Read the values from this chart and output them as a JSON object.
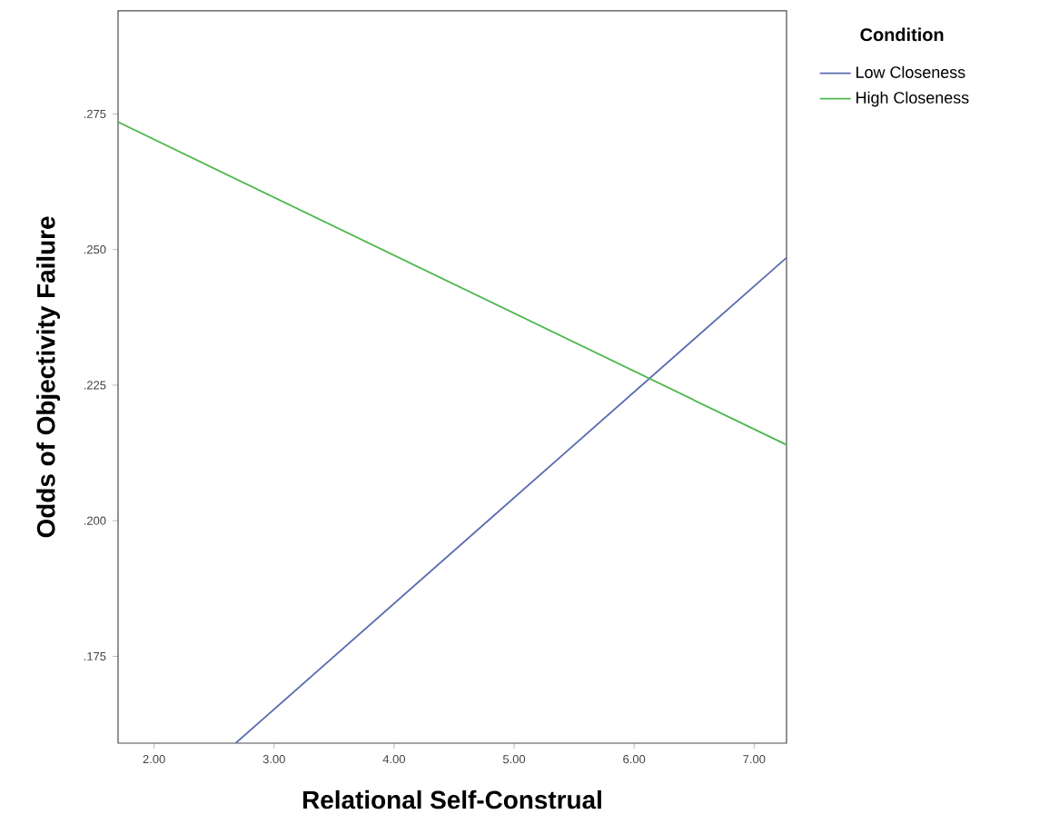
{
  "chart_data": {
    "type": "line",
    "xlabel": "Relational Self-Construal",
    "ylabel": "Odds of Objectivity Failure",
    "legend_title": "Condition",
    "legend": "top right",
    "grid": false,
    "marker": "none",
    "line_style": "solid",
    "xlim": [
      1.7,
      7.27
    ],
    "ylim": [
      0.159,
      0.294
    ],
    "xticks": [
      {
        "value": 2,
        "label": "2.00"
      },
      {
        "value": 3,
        "label": "3.00"
      },
      {
        "value": 4,
        "label": "4.00"
      },
      {
        "value": 5,
        "label": "5.00"
      },
      {
        "value": 6,
        "label": "6.00"
      },
      {
        "value": 7,
        "label": "7.00"
      }
    ],
    "yticks": [
      {
        "value": 0.175,
        "label": ".175"
      },
      {
        "value": 0.2,
        "label": ".200"
      },
      {
        "value": 0.225,
        "label": ".225"
      },
      {
        "value": 0.25,
        "label": ".250"
      },
      {
        "value": 0.275,
        "label": ".275"
      }
    ],
    "series": [
      {
        "name": "Low Closeness",
        "color": "#5b6bb0",
        "x": [
          2.68,
          7.27
        ],
        "values": [
          0.159,
          0.2485
        ]
      },
      {
        "name": "High Closeness",
        "color": "#4cb74c",
        "x": [
          1.7,
          7.27
        ],
        "values": [
          0.2735,
          0.214
        ]
      }
    ]
  }
}
